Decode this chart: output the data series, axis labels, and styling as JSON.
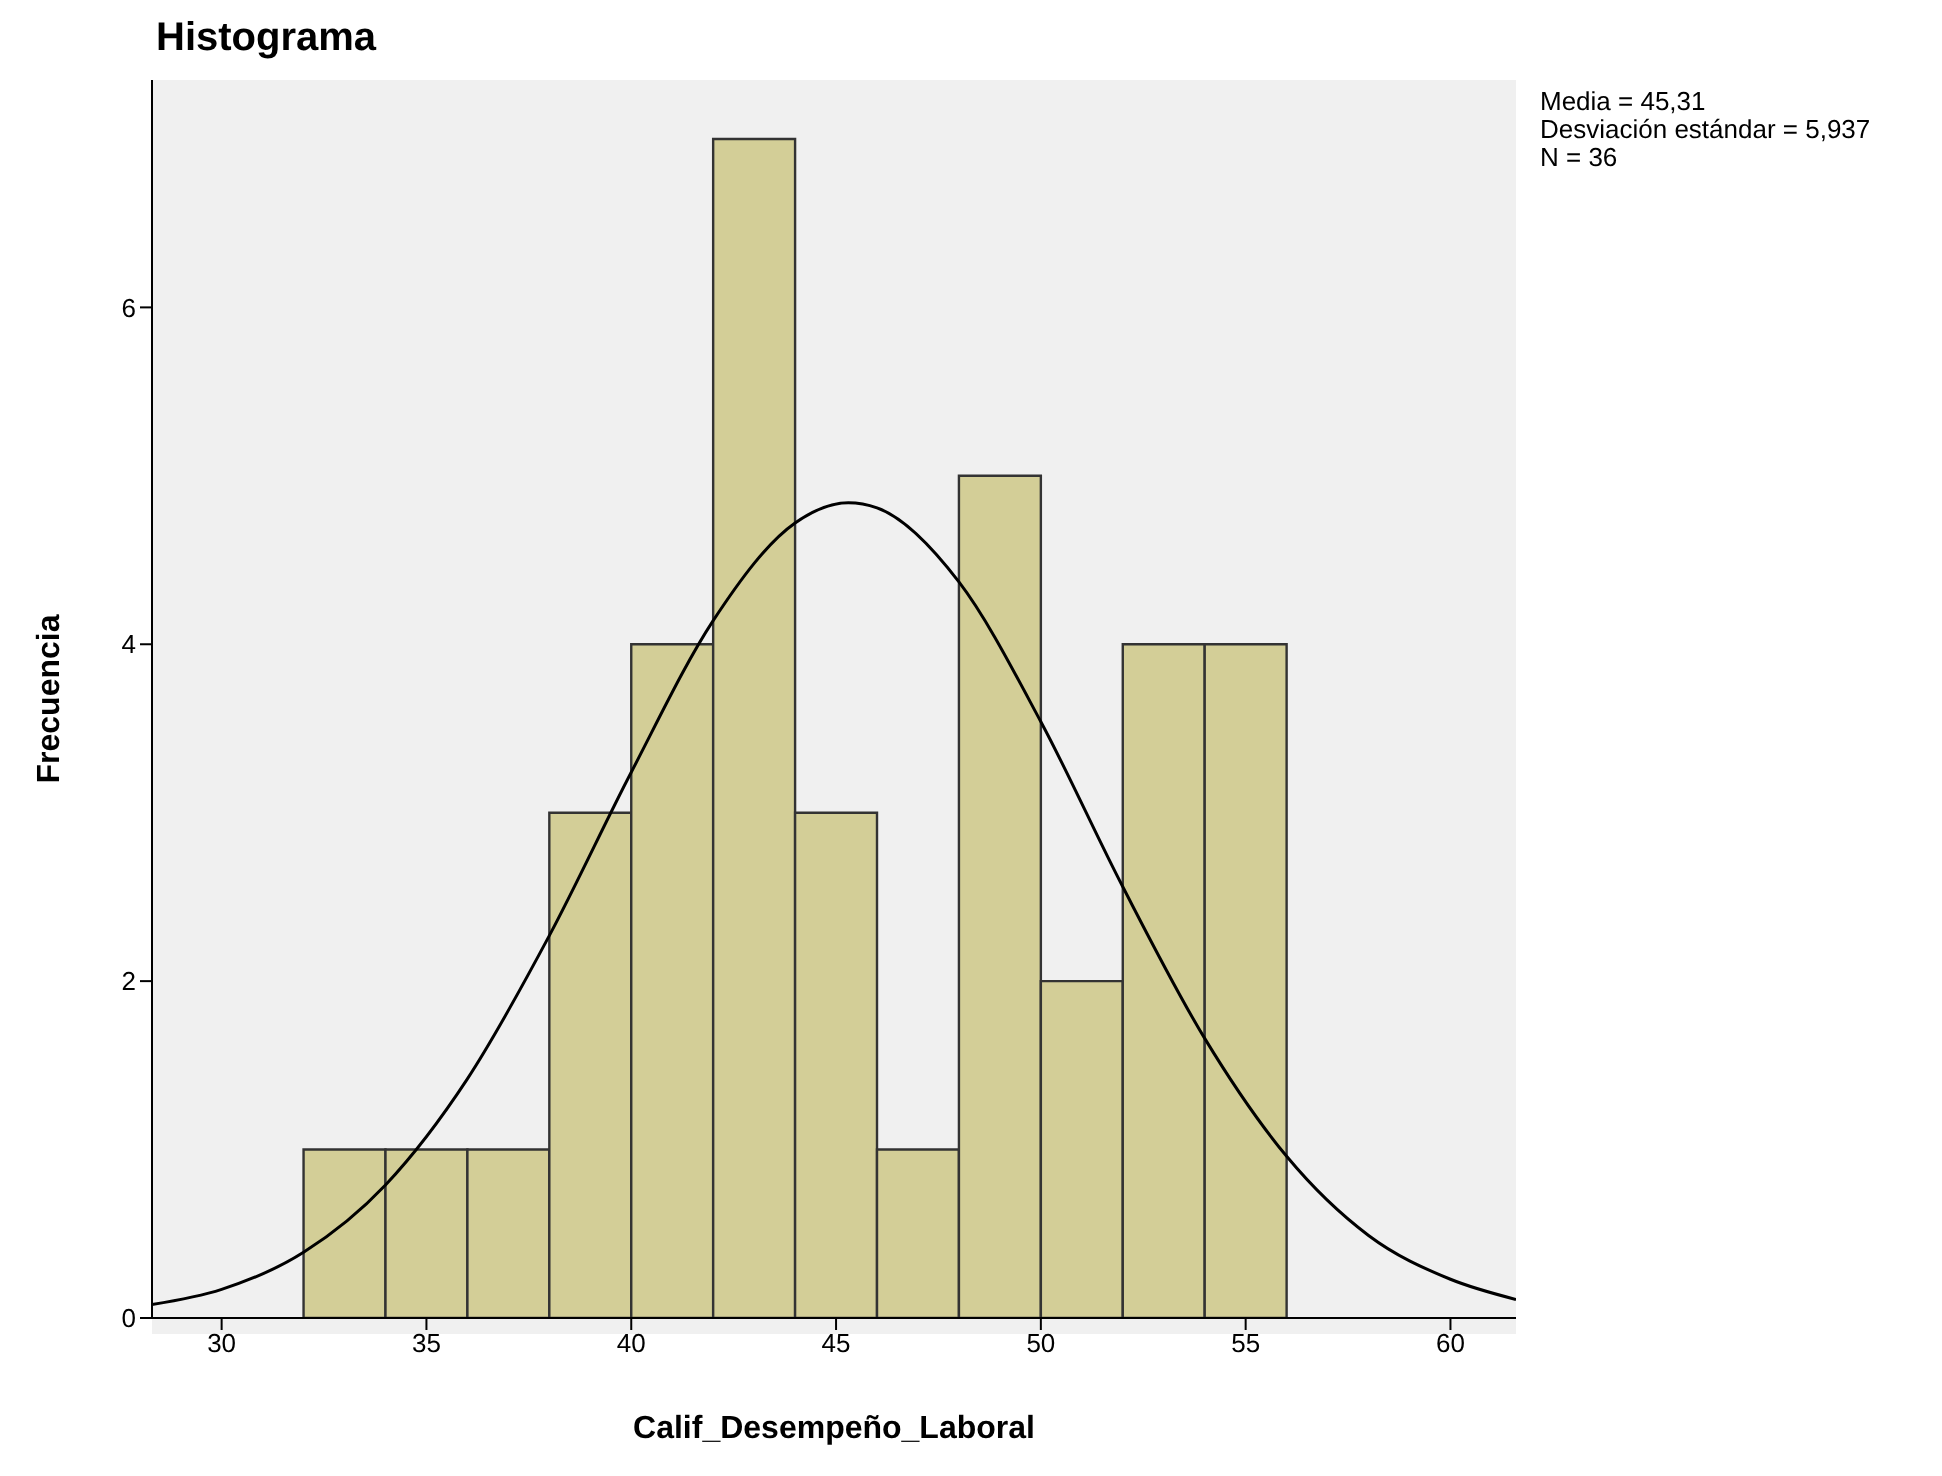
{
  "chart_data": {
    "type": "histogram",
    "title": "Histograma",
    "xlabel": "Calif_Desempeño_Laboral",
    "ylabel": "Frecuencia",
    "bins": [
      32,
      34,
      36,
      38,
      40,
      42,
      44,
      46,
      48,
      50,
      52,
      54,
      56
    ],
    "values": [
      1,
      1,
      1,
      3,
      4,
      7,
      3,
      1,
      5,
      2,
      4,
      4
    ],
    "color": "#d3ce97",
    "series": [
      {
        "type": "line",
        "color": "#000000",
        "x": [
          28.3,
          30,
          32,
          34,
          36,
          38,
          40,
          42,
          44,
          45.3,
          46,
          48,
          50,
          52,
          54,
          56,
          58,
          60,
          61.6
        ],
        "values": [
          0.08,
          0.17,
          0.39,
          0.79,
          1.42,
          2.27,
          3.24,
          4.14,
          4.72,
          4.84,
          4.81,
          4.37,
          3.54,
          2.56,
          1.66,
          0.96,
          0.49,
          0.23,
          0.11
        ]
      }
    ],
    "xlim": [
      28.3,
      61.6
    ],
    "xticks": [
      30,
      35,
      40,
      45,
      50,
      55,
      60
    ],
    "ylim": [
      0,
      7.35
    ],
    "yticks": [
      0,
      2,
      4,
      6
    ],
    "grid": false,
    "legend": false,
    "annotations": [
      "Media = 45,31",
      "Desviación estándar = 5,937",
      "N = 36"
    ]
  }
}
